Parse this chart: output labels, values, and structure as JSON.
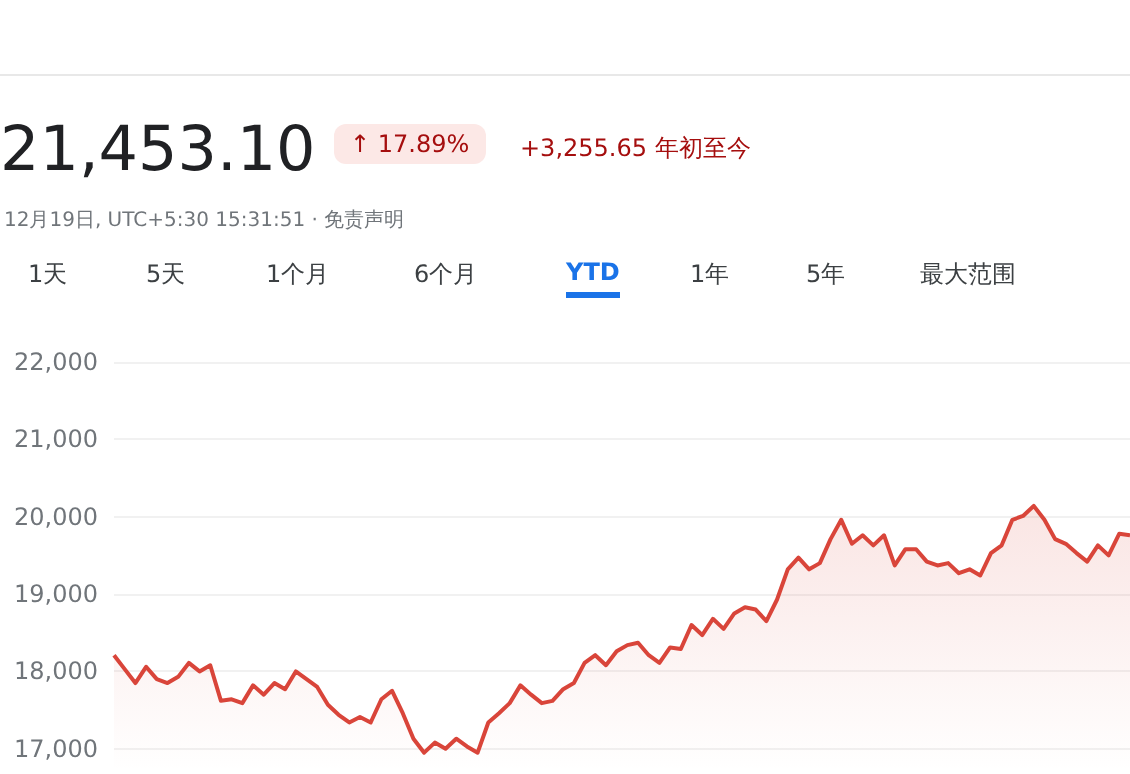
{
  "chart_data": {
    "type": "area",
    "annotations": [
      "21,453.10",
      "↑ 17.89%",
      "+3,255.65 年初至今",
      "12月19日, UTC+5:30 15:31:51 · 免责声明",
      "1天",
      "5天",
      "1个月",
      "6个月",
      "YTD",
      "1年",
      "5年",
      "最大范围"
    ],
    "categories": [
      null,
      null,
      null,
      null,
      null,
      null,
      null,
      null,
      null,
      null,
      null,
      null,
      null,
      null,
      null,
      null,
      null,
      null,
      null,
      null,
      null,
      null,
      null,
      null,
      null,
      null,
      null,
      null,
      null,
      null,
      null,
      null,
      null,
      null,
      null,
      null,
      null,
      null,
      null,
      null,
      null,
      null,
      null,
      null,
      null,
      null,
      null,
      null,
      null,
      null,
      null,
      null,
      null,
      null,
      null,
      null,
      null,
      null,
      null,
      null,
      null,
      null,
      null,
      null,
      null,
      null,
      null,
      null,
      null,
      null,
      null,
      null,
      null,
      null,
      null,
      null,
      null,
      null,
      null,
      null,
      null,
      null,
      null,
      null,
      null,
      null,
      null,
      null,
      null,
      null,
      null,
      null,
      null,
      null,
      null,
      null
    ],
    "series": [
      {
        "color": "#d9453a",
        "values": [
          18210,
          18030,
          17850,
          18060,
          17900,
          17850,
          17930,
          18110,
          18000,
          18080,
          17620,
          17640,
          17590,
          17820,
          17700,
          17850,
          17770,
          18000,
          17900,
          17800,
          17570,
          17440,
          17340,
          17410,
          17340,
          17640,
          17750,
          17460,
          17130,
          16950,
          17080,
          17000,
          17130,
          17030,
          16950,
          17340,
          17460,
          17590,
          17820,
          17700,
          17590,
          17620,
          17770,
          17850,
          18110,
          18210,
          18080,
          18260,
          18340,
          18370,
          18210,
          18110,
          18310,
          18290,
          18600,
          18470,
          18680,
          18550,
          18750,
          18830,
          18800,
          18650,
          18930,
          19320,
          19470,
          19320,
          19400,
          19710,
          19960,
          19650,
          19760,
          19630,
          19760,
          19370,
          19580,
          19580,
          19420,
          19370,
          19400,
          19270,
          19320,
          19240,
          19530,
          19630,
          19960,
          20010,
          20140,
          19960,
          19710,
          19650,
          19530,
          19420,
          19630,
          19500,
          19780,
          19760
        ]
      }
    ],
    "ylim": [
      16700,
      22000
    ],
    "yticks": [
      {
        "value": 17000,
        "label": "17,000"
      },
      {
        "value": 18000,
        "label": "18,000"
      },
      {
        "value": 19000,
        "label": "19,000"
      },
      {
        "value": 20000,
        "label": "20,000"
      },
      {
        "value": 21000,
        "label": "21,000"
      },
      {
        "value": 22000,
        "label": "22,000"
      }
    ],
    "grid": "y",
    "tick_labels": "y"
  }
}
